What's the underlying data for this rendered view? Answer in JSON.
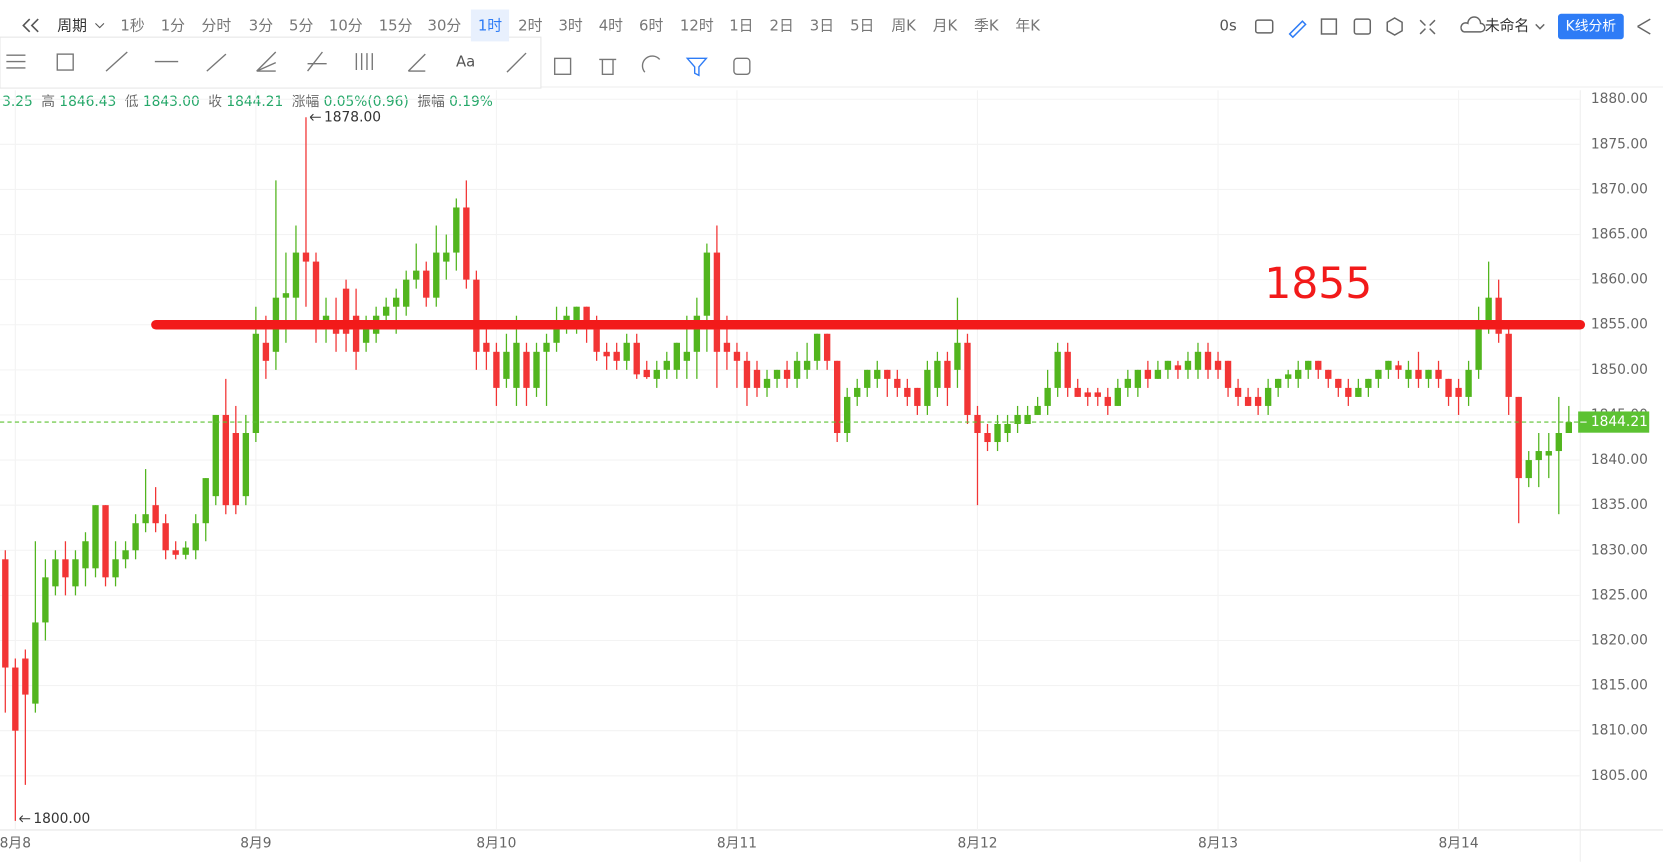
{
  "toolbar": {
    "period_label": "周期",
    "periods": [
      "1秒",
      "1分",
      "分时",
      "3分",
      "5分",
      "10分",
      "15分",
      "30分",
      "1时",
      "2时",
      "3时",
      "4时",
      "6时",
      "12时",
      "1日",
      "2日",
      "3日",
      "5日",
      "周K",
      "月K",
      "季K",
      "年K"
    ],
    "active_period": "1时",
    "timer": "0s",
    "layout_name": "未命名",
    "analysis_button": "K线分析",
    "text_tool": "Aa"
  },
  "info": [
    {
      "value": "3.25"
    },
    {
      "label": "高",
      "value": "1846.43"
    },
    {
      "label": "低",
      "value": "1843.00"
    },
    {
      "label": "收",
      "value": "1844.21"
    },
    {
      "label": "涨幅",
      "value": "0.05%(0.96)"
    },
    {
      "label": "振幅",
      "value": "0.19%"
    }
  ],
  "chart_data": {
    "type": "candlestick",
    "up_color": "#52b51e",
    "down_color": "#f23535",
    "categories": [
      null,
      "8月8",
      null,
      null,
      null,
      null,
      null,
      null,
      null,
      null,
      null,
      null,
      null,
      null,
      null,
      null,
      null,
      null,
      null,
      null,
      null,
      null,
      null,
      null,
      null,
      "8月9",
      null,
      null,
      null,
      null,
      null,
      null,
      null,
      null,
      null,
      null,
      null,
      null,
      null,
      null,
      null,
      null,
      null,
      null,
      null,
      null,
      null,
      null,
      null,
      "8月10",
      null,
      null,
      null,
      null,
      null,
      null,
      null,
      null,
      null,
      null,
      null,
      null,
      null,
      null,
      null,
      null,
      null,
      null,
      null,
      null,
      null,
      null,
      null,
      "8月11",
      null,
      null,
      null,
      null,
      null,
      null,
      null,
      null,
      null,
      null,
      null,
      null,
      null,
      null,
      null,
      null,
      null,
      null,
      null,
      null,
      null,
      null,
      null,
      "8月12",
      null,
      null,
      null,
      null,
      null,
      null,
      null,
      null,
      null,
      null,
      null,
      null,
      null,
      null,
      null,
      null,
      null,
      null,
      null,
      null,
      null,
      null,
      null,
      "8月13",
      null,
      null,
      null,
      null,
      null,
      null,
      null,
      null,
      null,
      null,
      null,
      null,
      null,
      null,
      null,
      null,
      null,
      null,
      null,
      null,
      null,
      null,
      null,
      "8月14",
      null,
      null,
      null,
      null,
      null,
      null,
      null,
      null,
      null,
      null,
      null
    ],
    "open": [
      1829,
      1817,
      1818,
      1813,
      1822,
      1826,
      1829,
      1826,
      1828,
      1828,
      1835,
      1827,
      1829,
      1830,
      1833,
      1835,
      1833,
      1830,
      1829.5,
      1830,
      1833,
      1836,
      1845,
      1843,
      1836,
      1843,
      1853,
      1852,
      1858,
      1858,
      1863,
      1862,
      1855,
      1855,
      1859,
      1856,
      1853,
      1854,
      1856,
      1857,
      1857,
      1860,
      1861,
      1858,
      1862,
      1863,
      1868,
      1860,
      1853,
      1852,
      1849,
      1848,
      1852,
      1848,
      1852,
      1853,
      1855,
      1855,
      1857,
      1855,
      1852,
      1852,
      1851,
      1853,
      1850,
      1849,
      1850,
      1850,
      1851,
      1852,
      1856,
      1863,
      1853,
      1852,
      1851,
      1850,
      1848,
      1849,
      1850,
      1849,
      1850,
      1851,
      1854,
      1851,
      1843,
      1847,
      1848,
      1849,
      1850,
      1849,
      1848,
      1848,
      1846,
      1848,
      1851,
      1850,
      1853,
      1845,
      1843,
      1842,
      1843,
      1844,
      1844,
      1845,
      1846,
      1848,
      1852,
      1848,
      1847.5,
      1847.5,
      1847,
      1846,
      1848,
      1848,
      1850,
      1849,
      1850,
      1850.5,
      1850,
      1850,
      1852,
      1851,
      1851,
      1848,
      1847,
      1847,
      1846,
      1848,
      1849,
      1849,
      1850,
      1851,
      1850,
      1849,
      1848,
      1847,
      1848,
      1849,
      1850,
      1850.5,
      1849,
      1850,
      1849,
      1850,
      1849,
      1848,
      1847,
      1850,
      1855,
      1858,
      1854,
      1847,
      1838,
      1840,
      1840.5,
      1841,
      1843
    ],
    "high": [
      1830,
      1818,
      1819,
      1831,
      1829,
      1830,
      1831,
      1830,
      1832,
      1835,
      1835,
      1831,
      1831,
      1834,
      1839,
      1837,
      1834,
      1831,
      1831,
      1834,
      1838,
      1845,
      1849,
      1846,
      1845,
      1857,
      1856,
      1871,
      1863,
      1866,
      1878,
      1863,
      1858,
      1858,
      1860,
      1859,
      1856,
      1857,
      1858,
      1859,
      1861,
      1864,
      1862,
      1866,
      1865,
      1869,
      1871,
      1861,
      1855,
      1853,
      1854,
      1856,
      1853,
      1853,
      1854,
      1857,
      1857,
      1857,
      1857,
      1856,
      1853,
      1853,
      1854,
      1854,
      1851,
      1851,
      1852,
      1853,
      1856,
      1858,
      1864,
      1866,
      1856,
      1853,
      1852,
      1851,
      1850,
      1850,
      1851,
      1852,
      1853,
      1854,
      1854,
      1851,
      1848,
      1849,
      1850,
      1851,
      1850,
      1850,
      1849,
      1848,
      1851,
      1852,
      1852,
      1858,
      1854,
      1846,
      1844,
      1845,
      1845,
      1846,
      1846,
      1847,
      1850,
      1853,
      1853,
      1849,
      1848,
      1848,
      1848,
      1849,
      1850,
      1850,
      1851,
      1851,
      1851,
      1851,
      1852,
      1853,
      1853,
      1852,
      1851,
      1849,
      1848,
      1848,
      1849,
      1849,
      1850,
      1851,
      1851,
      1851,
      1850,
      1849,
      1849,
      1849,
      1849,
      1850,
      1851,
      1851,
      1851,
      1852,
      1850,
      1851,
      1849,
      1849,
      1851,
      1857,
      1862,
      1860,
      1855,
      1847,
      1841,
      1843,
      1843,
      1847,
      1846
    ],
    "low": [
      1812,
      1800,
      1804,
      1812,
      1820,
      1825,
      1825,
      1825,
      1826,
      1827,
      1826,
      1826,
      1828,
      1829,
      1832,
      1832,
      1829,
      1829,
      1829,
      1829,
      1831,
      1835,
      1834,
      1834,
      1835,
      1842,
      1849,
      1850,
      1853,
      1855,
      1857,
      1853,
      1853,
      1852,
      1852,
      1850,
      1852,
      1853,
      1855,
      1854,
      1856,
      1859,
      1857,
      1857,
      1860,
      1861,
      1859,
      1850,
      1850,
      1846,
      1848,
      1846,
      1846,
      1847,
      1846,
      1852,
      1854,
      1854,
      1853,
      1851,
      1850,
      1850,
      1850,
      1849,
      1849,
      1848,
      1849,
      1849,
      1849,
      1849,
      1852,
      1848,
      1850,
      1848,
      1846,
      1847,
      1847,
      1848,
      1848,
      1848,
      1849,
      1850,
      1850,
      1842,
      1842,
      1846,
      1847,
      1848,
      1847,
      1847,
      1846,
      1845,
      1845,
      1847,
      1846,
      1848,
      1844,
      1835,
      1841,
      1841,
      1842,
      1843,
      1844,
      1845,
      1845,
      1847,
      1847,
      1847,
      1846,
      1846,
      1845,
      1846,
      1847,
      1847,
      1848,
      1849,
      1849,
      1849,
      1849,
      1849,
      1849,
      1849,
      1847,
      1846,
      1846,
      1845,
      1845,
      1847,
      1848,
      1848,
      1849,
      1849,
      1848,
      1847,
      1846,
      1847,
      1847,
      1848,
      1849,
      1849,
      1848,
      1848,
      1848,
      1848,
      1846,
      1845,
      1846,
      1849,
      1854,
      1853,
      1845,
      1833,
      1837,
      1837,
      1838,
      1834,
      1843
    ],
    "close": [
      1817,
      1810,
      1814,
      1822,
      1827,
      1829,
      1827,
      1829,
      1831,
      1835,
      1827,
      1829,
      1830,
      1833,
      1834,
      1833,
      1830,
      1829.5,
      1830.3,
      1833,
      1838,
      1845,
      1835,
      1835,
      1843,
      1854,
      1851,
      1858,
      1858.5,
      1863,
      1862,
      1855,
      1856,
      1854,
      1854,
      1852,
      1855,
      1856,
      1857,
      1858,
      1860,
      1861,
      1858,
      1863,
      1863,
      1868,
      1860,
      1852,
      1852,
      1848,
      1852,
      1853,
      1848,
      1852,
      1853,
      1855,
      1856,
      1857,
      1855,
      1852,
      1851.5,
      1851,
      1853,
      1849.5,
      1849.2,
      1850,
      1851,
      1853,
      1852,
      1856,
      1863,
      1852,
      1852,
      1851,
      1848,
      1848,
      1849,
      1850,
      1849,
      1851,
      1851,
      1854,
      1851,
      1843,
      1847,
      1848,
      1850,
      1850,
      1849,
      1848,
      1847,
      1846,
      1850,
      1851,
      1848,
      1853,
      1845,
      1843,
      1842,
      1844,
      1844,
      1845,
      1845,
      1846,
      1848,
      1852,
      1848,
      1847,
      1847,
      1847,
      1846,
      1848,
      1849,
      1850,
      1849,
      1850,
      1851,
      1850,
      1851,
      1852,
      1850,
      1850,
      1848,
      1847,
      1846,
      1846,
      1848,
      1849,
      1849.5,
      1850,
      1851,
      1850,
      1849,
      1848,
      1847,
      1848,
      1849,
      1850,
      1851,
      1850,
      1850,
      1849,
      1850,
      1849,
      1847,
      1847,
      1850,
      1855,
      1858,
      1854,
      1847,
      1838,
      1840,
      1841,
      1841,
      1843,
      1844.21
    ],
    "ylim": [
      1799,
      1881
    ],
    "yticks": [
      {
        "value": 1805,
        "label": "1805.00"
      },
      {
        "value": 1810,
        "label": "1810.00"
      },
      {
        "value": 1815,
        "label": "1815.00"
      },
      {
        "value": 1820,
        "label": "1820.00"
      },
      {
        "value": 1825,
        "label": "1825.00"
      },
      {
        "value": 1830,
        "label": "1830.00"
      },
      {
        "value": 1835,
        "label": "1835.00"
      },
      {
        "value": 1840,
        "label": "1840.00"
      },
      {
        "value": 1845,
        "label": "1845.00"
      },
      {
        "value": 1850,
        "label": "1850.00"
      },
      {
        "value": 1855,
        "label": "1855.00"
      },
      {
        "value": 1860,
        "label": "1860.00"
      },
      {
        "value": 1865,
        "label": "1865.00"
      },
      {
        "value": 1870,
        "label": "1870.00"
      },
      {
        "value": 1875,
        "label": "1875.00"
      },
      {
        "value": 1880,
        "label": "1880.00"
      }
    ],
    "grid": true,
    "max_marker": {
      "value": 1878,
      "label": "1878.00"
    },
    "min_marker": {
      "value": 1800,
      "label": "1800.00"
    },
    "last_price": 1844.21,
    "last_price_color": "#5cc232",
    "reference_line": {
      "value": 1855,
      "color": "#f21a1a"
    }
  }
}
